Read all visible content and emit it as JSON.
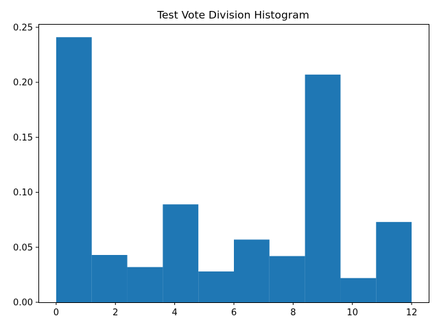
{
  "chart_data": {
    "type": "bar",
    "title": "Test Vote Division Histogram",
    "xlabel": "",
    "ylabel": "",
    "bins": [
      {
        "x0": 0.0,
        "x1": 1.2,
        "value": 0.241
      },
      {
        "x0": 1.2,
        "x1": 2.4,
        "value": 0.043
      },
      {
        "x0": 2.4,
        "x1": 3.6,
        "value": 0.032
      },
      {
        "x0": 3.6,
        "x1": 4.8,
        "value": 0.089
      },
      {
        "x0": 4.8,
        "x1": 6.0,
        "value": 0.028
      },
      {
        "x0": 6.0,
        "x1": 7.2,
        "value": 0.057
      },
      {
        "x0": 7.2,
        "x1": 8.4,
        "value": 0.042
      },
      {
        "x0": 8.4,
        "x1": 9.6,
        "value": 0.207
      },
      {
        "x0": 9.6,
        "x1": 10.8,
        "value": 0.022
      },
      {
        "x0": 10.8,
        "x1": 12.0,
        "value": 0.073
      }
    ],
    "xlim": [
      -0.6,
      12.6
    ],
    "ylim": [
      0,
      0.253
    ],
    "xticks": [
      0,
      2,
      4,
      6,
      8,
      10,
      12
    ],
    "xtick_labels": [
      "0",
      "2",
      "4",
      "6",
      "8",
      "10",
      "12"
    ],
    "yticks": [
      0.0,
      0.05,
      0.1,
      0.15,
      0.2,
      0.25
    ],
    "ytick_labels": [
      "0.00",
      "0.05",
      "0.10",
      "0.15",
      "0.20",
      "0.25"
    ],
    "bar_color": "#1f77b4",
    "grid": false,
    "legend": "none"
  }
}
